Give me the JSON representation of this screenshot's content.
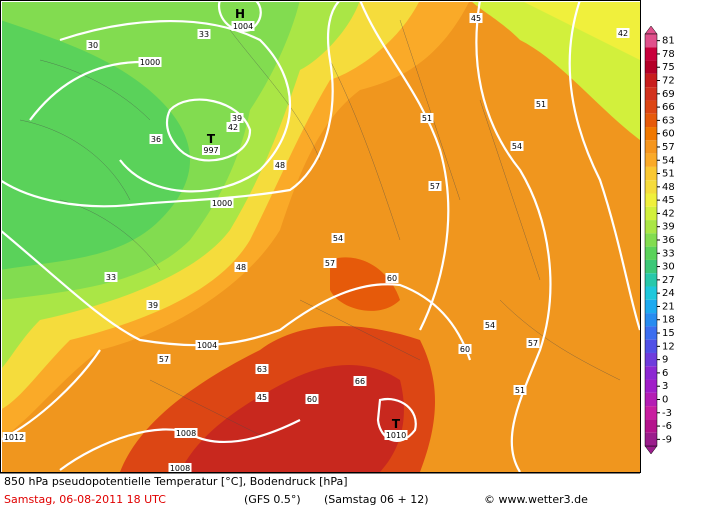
{
  "map": {
    "labels": [
      "H",
      "1004",
      "T",
      "997",
      "1000",
      "1000",
      "1004",
      "1008",
      "1008",
      "1012",
      "T",
      "1010",
      "33",
      "30",
      "36",
      "39",
      "42",
      "48",
      "54",
      "57",
      "51",
      "57",
      "60",
      "54",
      "57",
      "60",
      "57",
      "63",
      "66",
      "60",
      "51",
      "39",
      "33",
      "45",
      "42",
      "51",
      "54",
      "48",
      "45"
    ]
  },
  "color_scale": {
    "labels": [
      81,
      78,
      75,
      72,
      69,
      66,
      63,
      60,
      57,
      54,
      51,
      48,
      45,
      42,
      39,
      36,
      33,
      30,
      27,
      24,
      21,
      18,
      15,
      12,
      9,
      6,
      3,
      0,
      -3,
      -6,
      -9
    ],
    "colors": [
      "#e0508c",
      "#c8003c",
      "#b40028",
      "#c81e1e",
      "#d2321e",
      "#dc4614",
      "#e65a0a",
      "#f07800",
      "#f5961e",
      "#faaa28",
      "#fac832",
      "#f5dc3c",
      "#f0f03c",
      "#d2f03c",
      "#aae646",
      "#82dc50",
      "#5ad25a",
      "#3cc878",
      "#28c8aa",
      "#1ec8dc",
      "#1eaaf0",
      "#288cf0",
      "#3c6ef0",
      "#5050e6",
      "#6e3cdc",
      "#8c28d2",
      "#a01ec8",
      "#b41eb4",
      "#c81ea0",
      "#b4148c",
      "#9b1e8c"
    ]
  },
  "footer": {
    "line1": "850 hPa pseudopotentielle Temperatur [°C], Bodendruck [hPa]",
    "date": "Samstag, 06-08-2011   18 UTC",
    "model": "(GFS 0.5°)",
    "run": "(Samstag 06 + 12)",
    "credit": "© www.wetter3.de"
  }
}
